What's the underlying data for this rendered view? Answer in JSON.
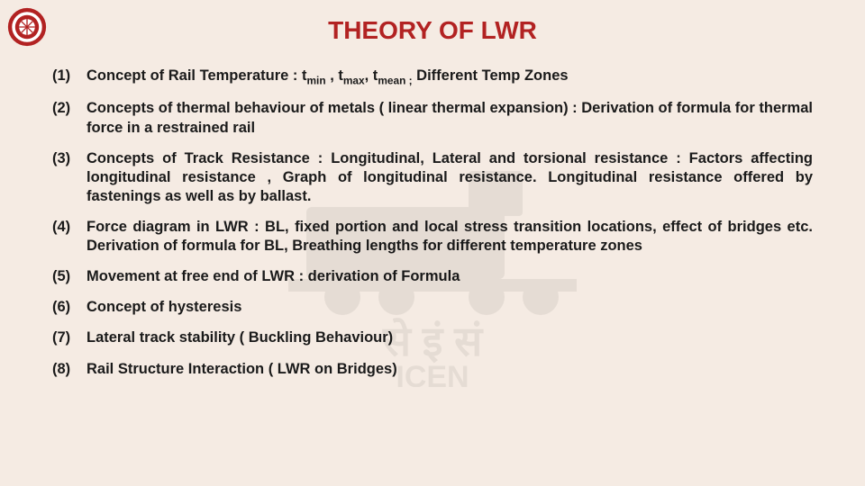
{
  "title": "THEORY OF LWR",
  "title_color": "#b22222",
  "background_color": "#f5ebe3",
  "text_color": "#1a1a1a",
  "font_size_title": 28,
  "font_size_body": 16.5,
  "items": [
    {
      "num": "(1)",
      "html": "Concept of Rail Temperature : t<sub>min</sub> , t<sub>max</sub>, t<sub>mean ;</sub> Different Temp Zones"
    },
    {
      "num": "(2)",
      "html": "Concepts of thermal behaviour of metals ( linear thermal expansion) : Derivation of formula for thermal force in a restrained rail"
    },
    {
      "num": "(3)",
      "html": "Concepts of Track Resistance : Longitudinal, Lateral and torsional resistance : Factors affecting longitudinal resistance , Graph of longitudinal resistance. Longitudinal resistance offered by fastenings as well as by ballast."
    },
    {
      "num": "(4)",
      "html": "Force diagram in LWR : BL, fixed portion and local stress transition locations, effect of bridges etc. Derivation of formula for BL, Breathing lengths for different temperature zones"
    },
    {
      "num": "(5)",
      "html": "Movement at free end of LWR : derivation of Formula"
    },
    {
      "num": "(6)",
      "html": "Concept of hysteresis"
    },
    {
      "num": "(7)",
      "html": "Lateral track stability ( Buckling Behaviour)"
    },
    {
      "num": "(8)",
      "html": "Rail Structure Interaction ( LWR on Bridges)"
    }
  ],
  "logo": {
    "outer_color": "#b22222",
    "inner_color": "#ffffff"
  },
  "watermark": {
    "color": "#000000",
    "opacity": 0.06
  }
}
